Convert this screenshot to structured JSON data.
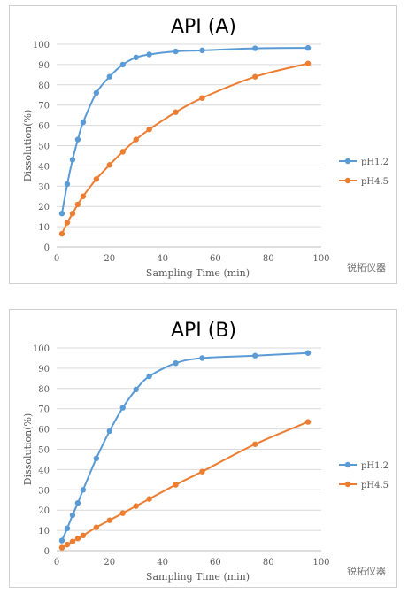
{
  "chart_data": [
    {
      "type": "line",
      "title": "API (A)",
      "xlabel": "Sampling Time (min)",
      "ylabel": "Dissolution(%)",
      "xlim": [
        0,
        100
      ],
      "ylim": [
        0,
        100
      ],
      "xticks": [
        0,
        20,
        40,
        60,
        80,
        100
      ],
      "yticks": [
        0,
        10,
        20,
        30,
        40,
        50,
        60,
        70,
        80,
        90,
        100
      ],
      "grid": "horizontal",
      "legend": "right",
      "series": [
        {
          "name": "pH1.2",
          "color": "#5b9bd5",
          "x": [
            2,
            4,
            6,
            8,
            10,
            15,
            20,
            25,
            30,
            35,
            45,
            55,
            75,
            95
          ],
          "values": [
            16.5,
            31,
            43,
            53,
            61.5,
            76,
            84,
            90,
            93.5,
            95,
            96.5,
            97,
            98,
            98.2
          ]
        },
        {
          "name": "pH4.5",
          "color": "#ed7d31",
          "x": [
            2,
            4,
            6,
            8,
            10,
            15,
            20,
            25,
            30,
            35,
            45,
            55,
            75,
            95
          ],
          "values": [
            6.5,
            12,
            16.5,
            21,
            25,
            33.5,
            40.5,
            47,
            53,
            58,
            66.5,
            73.5,
            84,
            90.5
          ]
        }
      ]
    },
    {
      "type": "line",
      "title": "API (B)",
      "xlabel": "Sampling Time (min)",
      "ylabel": "Dissolution(%)",
      "xlim": [
        0,
        100
      ],
      "ylim": [
        0,
        100
      ],
      "xticks": [
        0,
        20,
        40,
        60,
        80,
        100
      ],
      "yticks": [
        0,
        10,
        20,
        30,
        40,
        50,
        60,
        70,
        80,
        90,
        100
      ],
      "grid": "horizontal",
      "legend": "right",
      "series": [
        {
          "name": "pH1.2",
          "color": "#5b9bd5",
          "x": [
            2,
            4,
            6,
            8,
            10,
            15,
            20,
            25,
            30,
            35,
            45,
            55,
            75,
            95
          ],
          "values": [
            5,
            11,
            17.5,
            23.5,
            30,
            45.5,
            59,
            70.5,
            79.5,
            86,
            92.5,
            95,
            96.2,
            97.5
          ]
        },
        {
          "name": "pH4.5",
          "color": "#ed7d31",
          "x": [
            2,
            4,
            6,
            8,
            10,
            15,
            20,
            25,
            30,
            35,
            45,
            55,
            75,
            95
          ],
          "values": [
            1.5,
            3,
            4.5,
            6,
            7.5,
            11.5,
            15,
            18.5,
            22,
            25.5,
            32.5,
            39,
            52.5,
            63.5
          ]
        }
      ]
    }
  ],
  "watermark": "锐拓仪器"
}
